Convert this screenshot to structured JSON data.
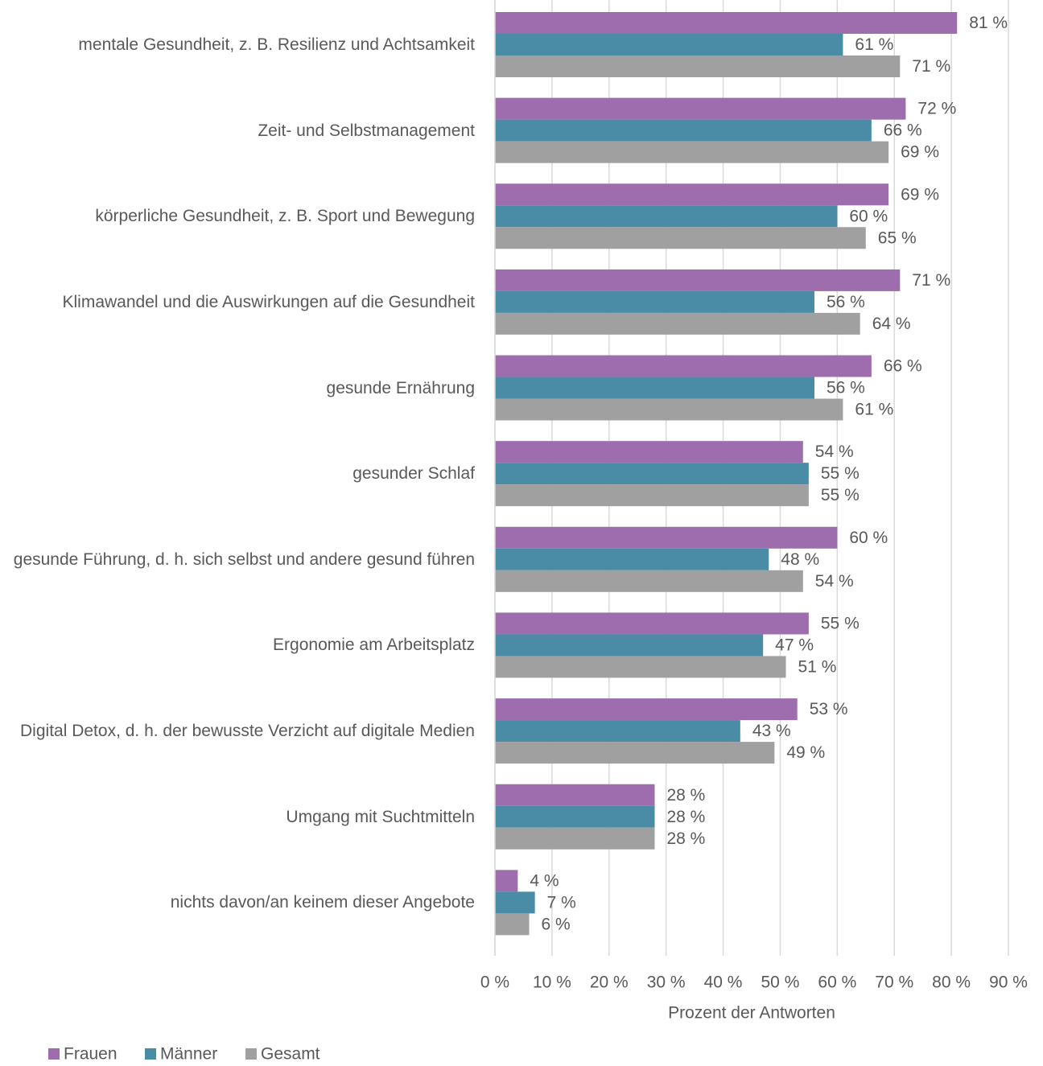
{
  "chart_data": {
    "type": "barh",
    "x_label": "Prozent der Antworten",
    "categories": [
      "mentale Gesundheit, z. B. Resilienz und Achtsamkeit",
      "Zeit- und Selbstmanagement",
      "körperliche Gesundheit, z. B. Sport und Bewegung",
      "Klimawandel und die Auswirkungen auf die Gesundheit",
      "gesunde Ernährung",
      "gesunder Schlaf",
      "gesunde Führung, d. h. sich selbst und andere gesund führen",
      "Ergonomie am Arbeitsplatz",
      "Digital Detox, d. h. der bewusste Verzicht auf digitale Medien",
      "Umgang mit Suchtmitteln",
      "nichts davon/an keinem dieser Angebote"
    ],
    "series": [
      {
        "name": "Frauen",
        "color": "#9e6dad",
        "values": [
          81,
          72,
          69,
          71,
          66,
          54,
          60,
          55,
          53,
          28,
          4
        ],
        "value_labels": [
          "81 %",
          "72 %",
          "69 %",
          "71 %",
          "66 %",
          "54 %",
          "60 %",
          "55 %",
          "53 %",
          "28 %",
          "4 %"
        ]
      },
      {
        "name": "Männer",
        "color": "#4a8ba5",
        "values": [
          61,
          66,
          60,
          56,
          56,
          55,
          48,
          47,
          43,
          28,
          7
        ],
        "value_labels": [
          "61 %",
          "66 %",
          "60 %",
          "56 %",
          "56 %",
          "55 %",
          "48 %",
          "47 %",
          "43 %",
          "28 %",
          "7 %"
        ]
      },
      {
        "name": "Gesamt",
        "color": "#a0a0a0",
        "values": [
          71,
          69,
          65,
          64,
          61,
          55,
          54,
          51,
          49,
          28,
          6
        ],
        "value_labels": [
          "71 %",
          "69 %",
          "65 %",
          "64 %",
          "61 %",
          "55 %",
          "54 %",
          "51 %",
          "49 %",
          "28 %",
          "6 %"
        ]
      }
    ],
    "xlim": [
      0,
      90
    ],
    "xticks": [
      {
        "value": 0,
        "label": "0 %"
      },
      {
        "value": 10,
        "label": "10 %"
      },
      {
        "value": 20,
        "label": "20 %"
      },
      {
        "value": 30,
        "label": "30 %"
      },
      {
        "value": 40,
        "label": "40 %"
      },
      {
        "value": 50,
        "label": "50 %"
      },
      {
        "value": 60,
        "label": "60 %"
      },
      {
        "value": 70,
        "label": "70 %"
      },
      {
        "value": 80,
        "label": "80 %"
      },
      {
        "value": 90,
        "label": "90 %"
      }
    ],
    "grid": true,
    "legend": "bottom-left"
  }
}
